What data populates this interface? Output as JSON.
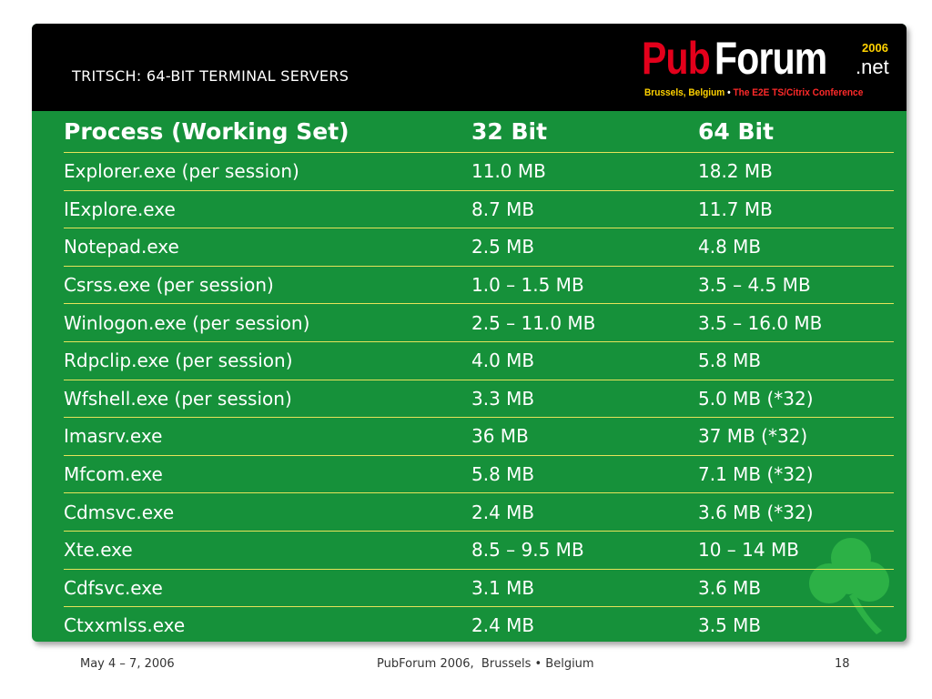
{
  "header": {
    "title": "TRITSCH: 64-BIT TERMINAL SERVERS",
    "logo": {
      "pub": "Pub",
      "forum": "Forum",
      "year": "2006",
      "tld": ".net",
      "city": "Brussels, Belgium",
      "separator": " • ",
      "conference": "The E2E TS/Citrix Conference"
    }
  },
  "table": {
    "headers": [
      "Process (Working Set)",
      "32 Bit",
      "64 Bit"
    ],
    "rows": [
      [
        "Explorer.exe (per session)",
        "11.0 MB",
        "18.2 MB"
      ],
      [
        "IExplore.exe",
        "8.7 MB",
        "11.7 MB"
      ],
      [
        "Notepad.exe",
        "2.5 MB",
        "4.8 MB"
      ],
      [
        "Csrss.exe (per session)",
        "1.0 – 1.5 MB",
        "3.5 – 4.5 MB"
      ],
      [
        "Winlogon.exe (per session)",
        "2.5 – 11.0 MB",
        "3.5 – 16.0 MB"
      ],
      [
        "Rdpclip.exe (per session)",
        "4.0 MB",
        "5.8 MB"
      ],
      [
        "Wfshell.exe (per session)",
        "3.3 MB",
        "5.0 MB (*32)"
      ],
      [
        "Imasrv.exe",
        "36 MB",
        "37 MB (*32)"
      ],
      [
        "Mfcom.exe",
        "5.8 MB",
        "7.1 MB (*32)"
      ],
      [
        "Cdmsvc.exe",
        "2.4 MB",
        "3.6 MB (*32)"
      ],
      [
        "Xte.exe",
        "8.5 – 9.5 MB",
        "10 – 14 MB"
      ],
      [
        "Cdfsvc.exe",
        "3.1 MB",
        "3.6 MB"
      ],
      [
        "Ctxxmlss.exe",
        "2.4 MB",
        "3.5 MB"
      ]
    ]
  },
  "footer": {
    "date": "May 4 – 7, 2006",
    "center": "PubForum 2006,  Brussels • Belgium",
    "page": "18"
  },
  "colors": {
    "panel_green": "#16913a",
    "header_black": "#000000",
    "row_divider": "#e6e35a",
    "logo_red": "#e3001b",
    "logo_yellow": "#ffd200"
  },
  "icons": [
    "shamrock-icon"
  ]
}
